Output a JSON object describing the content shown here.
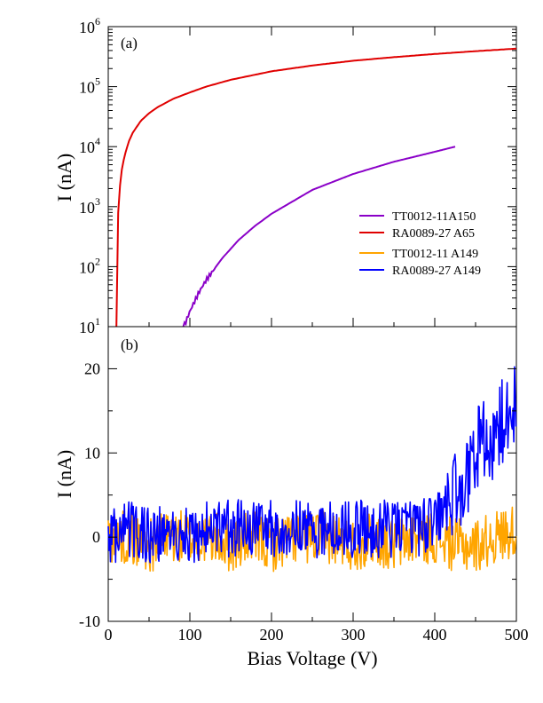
{
  "colors": {
    "TT0012-11A150": "#8a00c8",
    "RA0089-27 A65": "#e00000",
    "TT0012-11 A149": "#ffa500",
    "RA0089-27 A149": "#0000ff"
  },
  "chart_data": [
    {
      "type": "line",
      "panel_label": "(a)",
      "ylabel": "I (nA)",
      "xlabel": "",
      "yscale": "log",
      "xlim": [
        0,
        500
      ],
      "ylim": [
        10,
        1000000
      ],
      "ytick_bases": [
        "10",
        "10",
        "10",
        "10",
        "10",
        "10"
      ],
      "ytick_exponents": [
        "1",
        "2",
        "3",
        "4",
        "5",
        "6"
      ],
      "ytick_values": [
        10,
        100,
        1000,
        10000,
        100000,
        1000000
      ],
      "legend": [
        "TT0012-11A150",
        "RA0089-27 A65",
        "TT0012-11 A149",
        "RA0089-27 A149"
      ],
      "legend_position": "center-right",
      "series": [
        {
          "name": "RA0089-27 A65",
          "x": [
            10,
            11,
            12,
            14,
            17,
            20,
            25,
            30,
            40,
            50,
            60,
            80,
            100,
            120,
            150,
            200,
            250,
            300,
            350,
            400,
            450,
            500
          ],
          "values": [
            10,
            200,
            700,
            2000,
            4500,
            7000,
            12000,
            17000,
            27000,
            36000,
            45000,
            63000,
            80000,
            100000,
            130000,
            180000,
            225000,
            270000,
            310000,
            350000,
            390000,
            430000
          ]
        },
        {
          "name": "TT0012-11A150",
          "x": [
            92,
            95,
            100,
            110,
            120,
            140,
            160,
            180,
            200,
            250,
            300,
            350,
            400,
            425
          ],
          "values": [
            10,
            12,
            18,
            35,
            60,
            140,
            280,
            480,
            760,
            1900,
            3500,
            5600,
            8200,
            10000
          ]
        }
      ]
    },
    {
      "type": "line",
      "panel_label": "(b)",
      "ylabel": "I (nA)",
      "xlabel": "Bias Voltage (V)",
      "yscale": "linear",
      "xlim": [
        0,
        500
      ],
      "ylim": [
        -10,
        25
      ],
      "yticks": [
        "-10",
        "0",
        "10",
        "20"
      ],
      "ytick_values": [
        -10,
        0,
        10,
        20
      ],
      "xticks": [
        "0",
        "100",
        "200",
        "300",
        "400",
        "500"
      ],
      "xtick_values": [
        0,
        100,
        200,
        300,
        400,
        500
      ],
      "series": [
        {
          "name": "RA0089-27 A149",
          "x": [
            0,
            25,
            50,
            75,
            100,
            125,
            150,
            175,
            200,
            225,
            250,
            275,
            300,
            325,
            350,
            375,
            400,
            410,
            420,
            430,
            440,
            450,
            460,
            470,
            480,
            490,
            500
          ],
          "values": [
            0,
            1,
            0,
            1,
            0,
            1,
            1,
            1,
            1,
            1,
            1,
            1,
            1,
            1,
            1,
            1,
            2,
            3,
            5,
            6,
            8,
            10,
            11,
            12,
            13,
            15,
            17
          ],
          "noise_amplitude": 3.5
        },
        {
          "name": "TT0012-11 A149",
          "x": [
            0,
            25,
            50,
            75,
            100,
            125,
            150,
            175,
            200,
            225,
            250,
            275,
            300,
            325,
            350,
            375,
            400,
            425,
            450,
            475,
            500
          ],
          "values": [
            0,
            0,
            -1,
            0,
            0,
            0,
            -1,
            0,
            -1,
            0,
            0,
            0,
            -1,
            0,
            -1,
            0,
            0,
            -1,
            -1,
            0,
            1
          ],
          "noise_amplitude": 3.2
        }
      ]
    }
  ]
}
